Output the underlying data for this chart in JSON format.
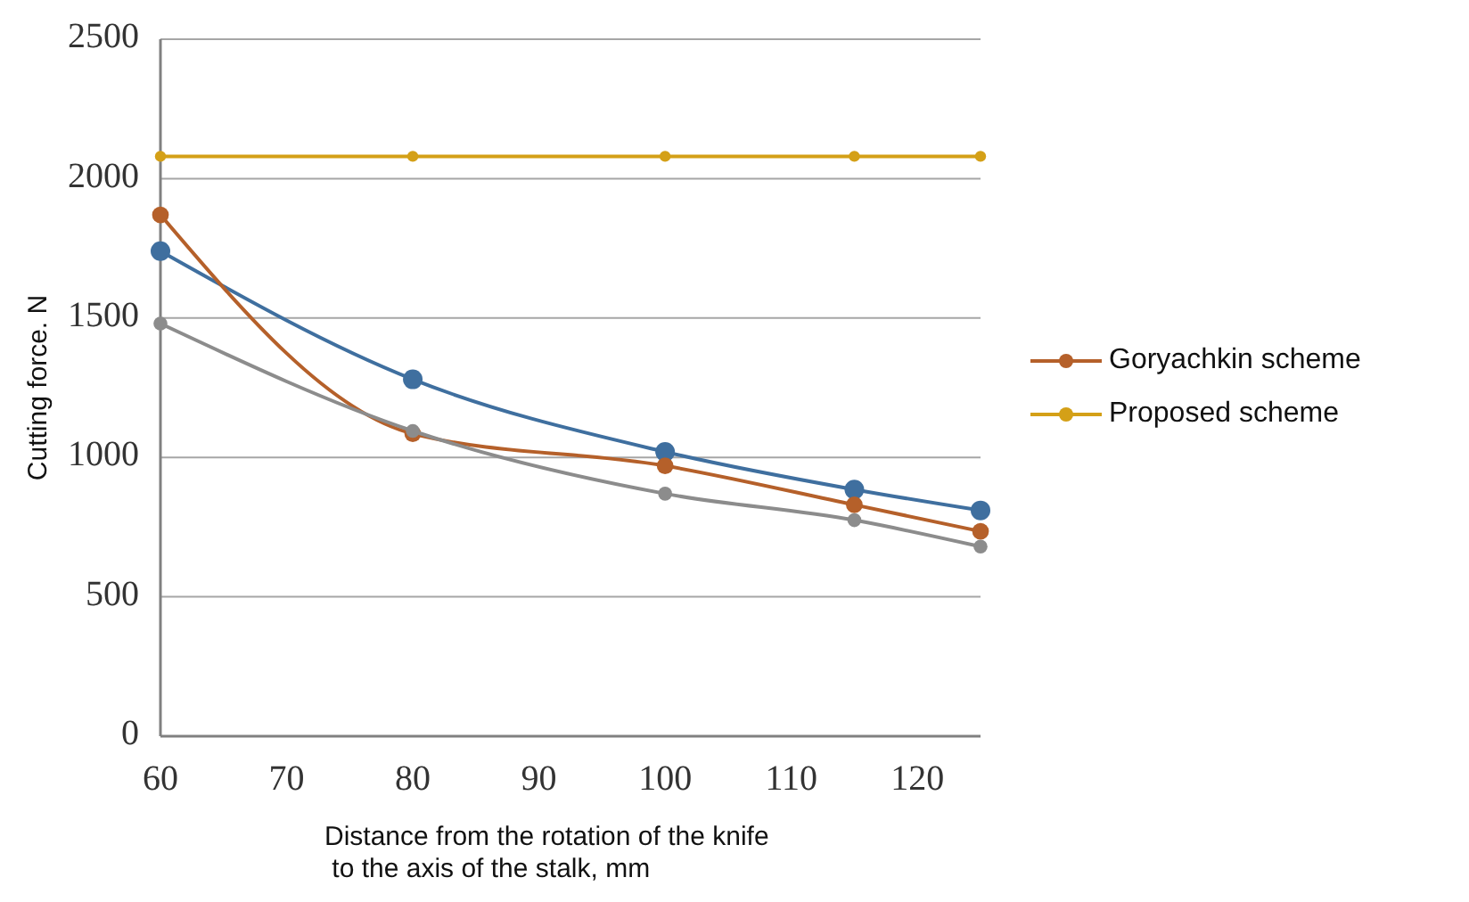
{
  "chart_data": {
    "type": "line",
    "xlabel": "Distance from the rotation of the knife\n to the axis of the stalk, mm",
    "ylabel": "Cutting force. N",
    "x": [
      60,
      80,
      100,
      115,
      125
    ],
    "series": [
      {
        "color": "#3f6f9f",
        "values": [
          1740,
          1280,
          1020,
          885,
          810
        ]
      },
      {
        "name": "Goryachkin scheme",
        "color": "#b5602a",
        "values": [
          1870,
          1085,
          970,
          830,
          735
        ]
      },
      {
        "color": "#8c8c8c",
        "values": [
          1480,
          1095,
          870,
          775,
          680
        ]
      },
      {
        "name": "Proposed scheme",
        "color": "#d4a017",
        "values": [
          2080,
          2080,
          2080,
          2080,
          2080
        ]
      }
    ],
    "xlim": [
      60,
      125
    ],
    "xticks": [
      60,
      70,
      80,
      90,
      100,
      110,
      120
    ],
    "ylim": [
      0,
      2500
    ],
    "yticks": [
      0,
      500,
      1000,
      1500,
      2000,
      2500
    ],
    "grid": "y",
    "legend": "right",
    "marker": "circle",
    "line_style": "solid"
  }
}
